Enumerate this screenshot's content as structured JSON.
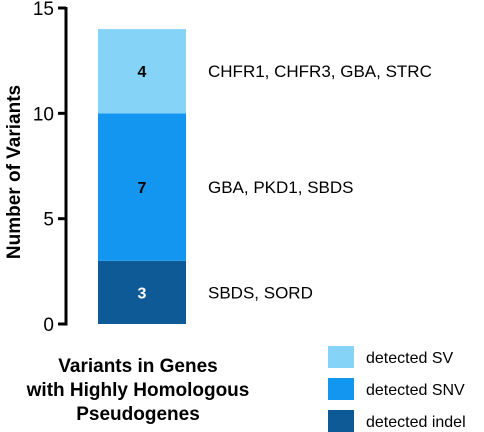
{
  "chart_data": {
    "type": "bar",
    "stacked": true,
    "xlabel": "Variants in Genes with Highly Homologous Pseudogenes",
    "xlabel_lines": [
      "Variants in Genes",
      "with Highly Homologous",
      "Pseudogenes"
    ],
    "ylabel": "Number of Variants",
    "ylim": [
      0,
      15
    ],
    "yticks": [
      0,
      5,
      10,
      15
    ],
    "grid": false,
    "legend_position": "bottom-right",
    "series": [
      {
        "name": "detected indel",
        "value": 3,
        "label": "3",
        "genes": "SBDS, SORD",
        "color": "#0d5a96",
        "label_color": "#ffffff"
      },
      {
        "name": "detected SNV",
        "value": 7,
        "label": "7",
        "genes": "GBA, PKD1, SBDS",
        "color": "#1296f0",
        "label_color": "#000000"
      },
      {
        "name": "detected SV",
        "value": 4,
        "label": "4",
        "genes": "CHFR1, CHFR3, GBA, STRC",
        "color": "#86d3f8",
        "label_color": "#000000"
      }
    ],
    "legend": [
      {
        "name": "detected SV",
        "color": "#86d3f8"
      },
      {
        "name": "detected SNV",
        "color": "#1296f0"
      },
      {
        "name": "detected indel",
        "color": "#0d5a96"
      }
    ]
  }
}
